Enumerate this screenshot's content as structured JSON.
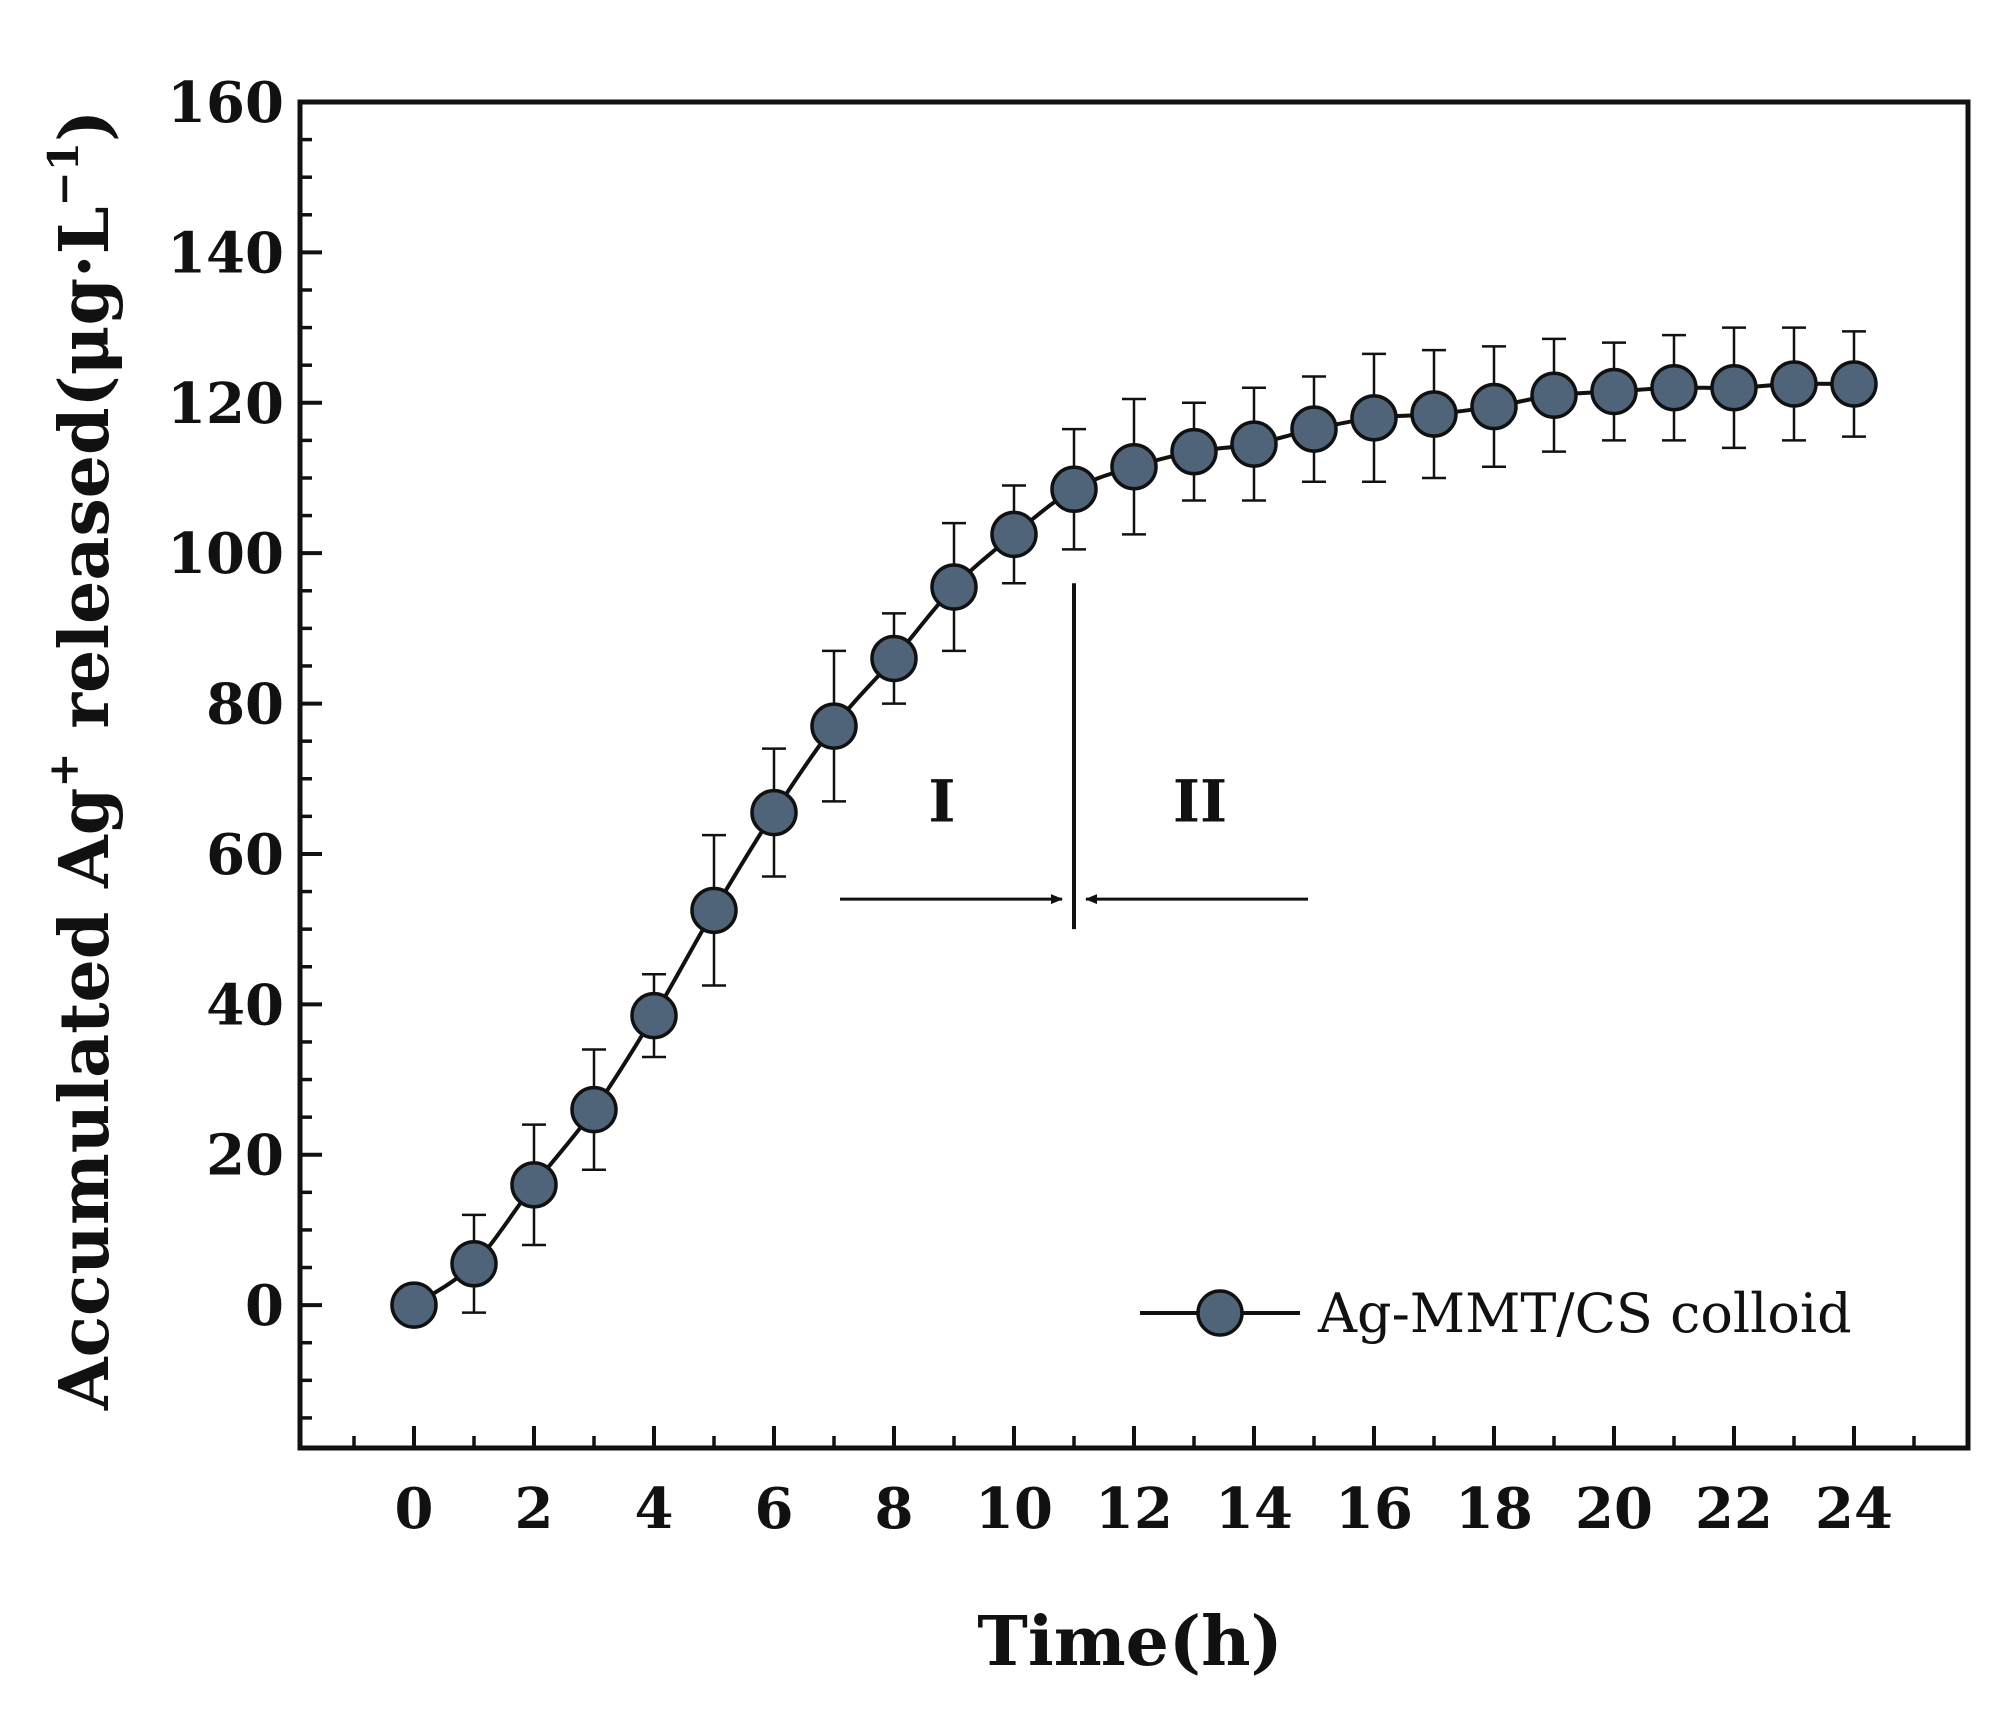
{
  "chart_data": {
    "type": "line",
    "title": "",
    "xlabel": "Time(h)",
    "ylabel": {
      "main": "Accumulated Ag",
      "sup": "+",
      "rest": " released(μg·L",
      "sup2": "−1",
      "close": ")"
    },
    "xlim": [
      -1.9,
      25.9
    ],
    "ylim": [
      -19,
      160
    ],
    "x_ticks": [
      0,
      2,
      4,
      6,
      8,
      10,
      12,
      14,
      16,
      18,
      20,
      22,
      24
    ],
    "y_ticks": [
      0,
      20,
      40,
      60,
      80,
      100,
      120,
      140,
      160
    ],
    "x_minor_step": 1,
    "y_minor_step": 5,
    "series": [
      {
        "name": "Ag-MMT/CS colloid",
        "color": "#4f6478",
        "x": [
          0,
          1,
          2,
          3,
          4,
          5,
          6,
          7,
          8,
          9,
          10,
          11,
          12,
          13,
          14,
          15,
          16,
          17,
          18,
          19,
          20,
          21,
          22,
          23,
          24
        ],
        "values": [
          0,
          5.5,
          16,
          26,
          38.5,
          52.5,
          65.5,
          77,
          86,
          95.5,
          102.5,
          108.5,
          111.5,
          113.5,
          114.5,
          116.5,
          118,
          118.5,
          119.5,
          121,
          121.5,
          122,
          122,
          122.5,
          122.5
        ],
        "errors": [
          0,
          6.5,
          8,
          8,
          5.5,
          10,
          8.5,
          10,
          6,
          8.5,
          6.5,
          8,
          9,
          6.5,
          7.5,
          7,
          8.5,
          8.5,
          8,
          7.5,
          6.5,
          7,
          8,
          7.5,
          7
        ]
      }
    ],
    "annotations": {
      "divider_x": 11,
      "divider_y": [
        50,
        96
      ],
      "region_1": {
        "label": "I",
        "x": 8.8,
        "y": 67
      },
      "region_2": {
        "label": "II",
        "x": 13.1,
        "y": 67
      },
      "arrow_left": {
        "from_x": 7.1,
        "to_x": 10.8,
        "y": 54
      },
      "arrow_right": {
        "from_x": 14.9,
        "to_x": 11.2,
        "y": 54
      }
    },
    "legend": {
      "position": "bottom-right",
      "entries": [
        "Ag-MMT/CS colloid"
      ]
    },
    "grid": false
  }
}
